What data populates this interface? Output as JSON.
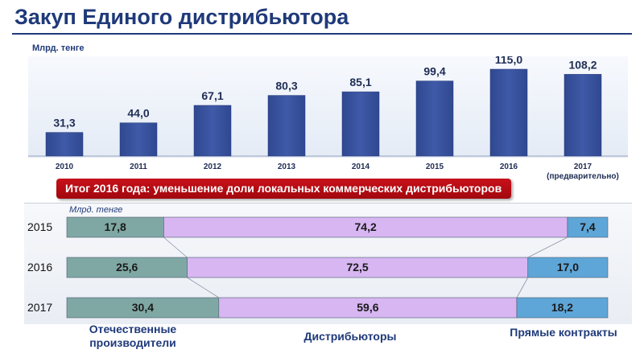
{
  "title": "Закуп Единого дистрибьютора",
  "banner": "Итог  2016 года:  уменьшение доли локальных коммерческих дистрибьюторов",
  "chart_data": [
    {
      "type": "bar",
      "ylabel": "Млрд. тенге",
      "categories": [
        "2010",
        "2011",
        "2012",
        "2013",
        "2014",
        "2015",
        "2016",
        "2017\n(предварительно)"
      ],
      "values": [
        31.3,
        44.0,
        67.1,
        80.3,
        85.1,
        99.4,
        115.0,
        108.2
      ],
      "value_labels": [
        "31,3",
        "44,0",
        "67,1",
        "80,3",
        "85,1",
        "99,4",
        "115,0",
        "108,2"
      ],
      "bar_color": "#3f5aa8",
      "ylim": [
        0,
        115
      ]
    },
    {
      "type": "bar",
      "orientation": "horizontal-stacked",
      "unit": "Млрд. тенге",
      "categories": [
        "2015",
        "2016",
        "2017"
      ],
      "series": [
        {
          "name": "Отечественные производители",
          "values": [
            17.8,
            25.6,
            30.4
          ],
          "labels": [
            "17,8",
            "25,6",
            "30,4"
          ],
          "color": "#7fa8a4"
        },
        {
          "name": "Дистрибьюторы",
          "values": [
            74.2,
            72.5,
            59.6
          ],
          "labels": [
            "74,2",
            "72,5",
            "59,6"
          ],
          "color": "#d7b6f2"
        },
        {
          "name": "Прямые контракты",
          "values": [
            7.4,
            17.0,
            18.2
          ],
          "labels": [
            "7,4",
            "17,0",
            "18,2"
          ],
          "color": "#5fa6d8"
        }
      ],
      "legend_labels": [
        "Отечественные\nпроизводители",
        "Дистрибьюторы",
        "Прямые контракты"
      ]
    }
  ]
}
